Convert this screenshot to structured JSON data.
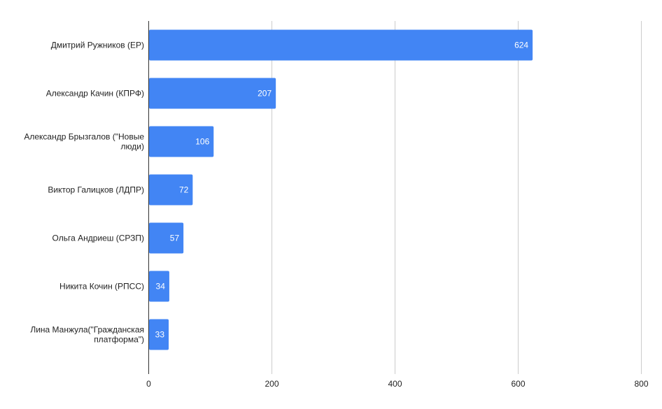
{
  "chart_data": {
    "type": "bar",
    "orientation": "horizontal",
    "title": "",
    "xlabel": "",
    "ylabel": "",
    "categories": [
      "Дмитрий Ружников (ЕР)",
      "Александр Качин (КПРФ)",
      "Александр Брызгалов (\"Новые люди)",
      "Виктор Галицков (ЛДПР)",
      "Ольга Андриеш (СРЗП)",
      "Никита Кочин (РПСС)",
      "Лина Манжула(\"Гражданская платформа\")"
    ],
    "category_lines": [
      [
        "Дмитрий Ружников (ЕР)"
      ],
      [
        "Александр Качин (КПРФ)"
      ],
      [
        "Александр Брызгалов (\"Новые",
        "люди)"
      ],
      [
        "Виктор Галицков (ЛДПР)"
      ],
      [
        "Ольга Андриеш (СРЗП)"
      ],
      [
        "Никита Кочин (РПСС)"
      ],
      [
        "Лина Манжула(\"Гражданская",
        "платформа\")"
      ]
    ],
    "values": [
      624,
      207,
      106,
      72,
      57,
      34,
      33
    ],
    "xlim": [
      0,
      800
    ],
    "xticks": [
      0,
      200,
      400,
      600,
      800
    ],
    "grid": true,
    "data_labels": true,
    "bar_color": "#4285f4"
  }
}
